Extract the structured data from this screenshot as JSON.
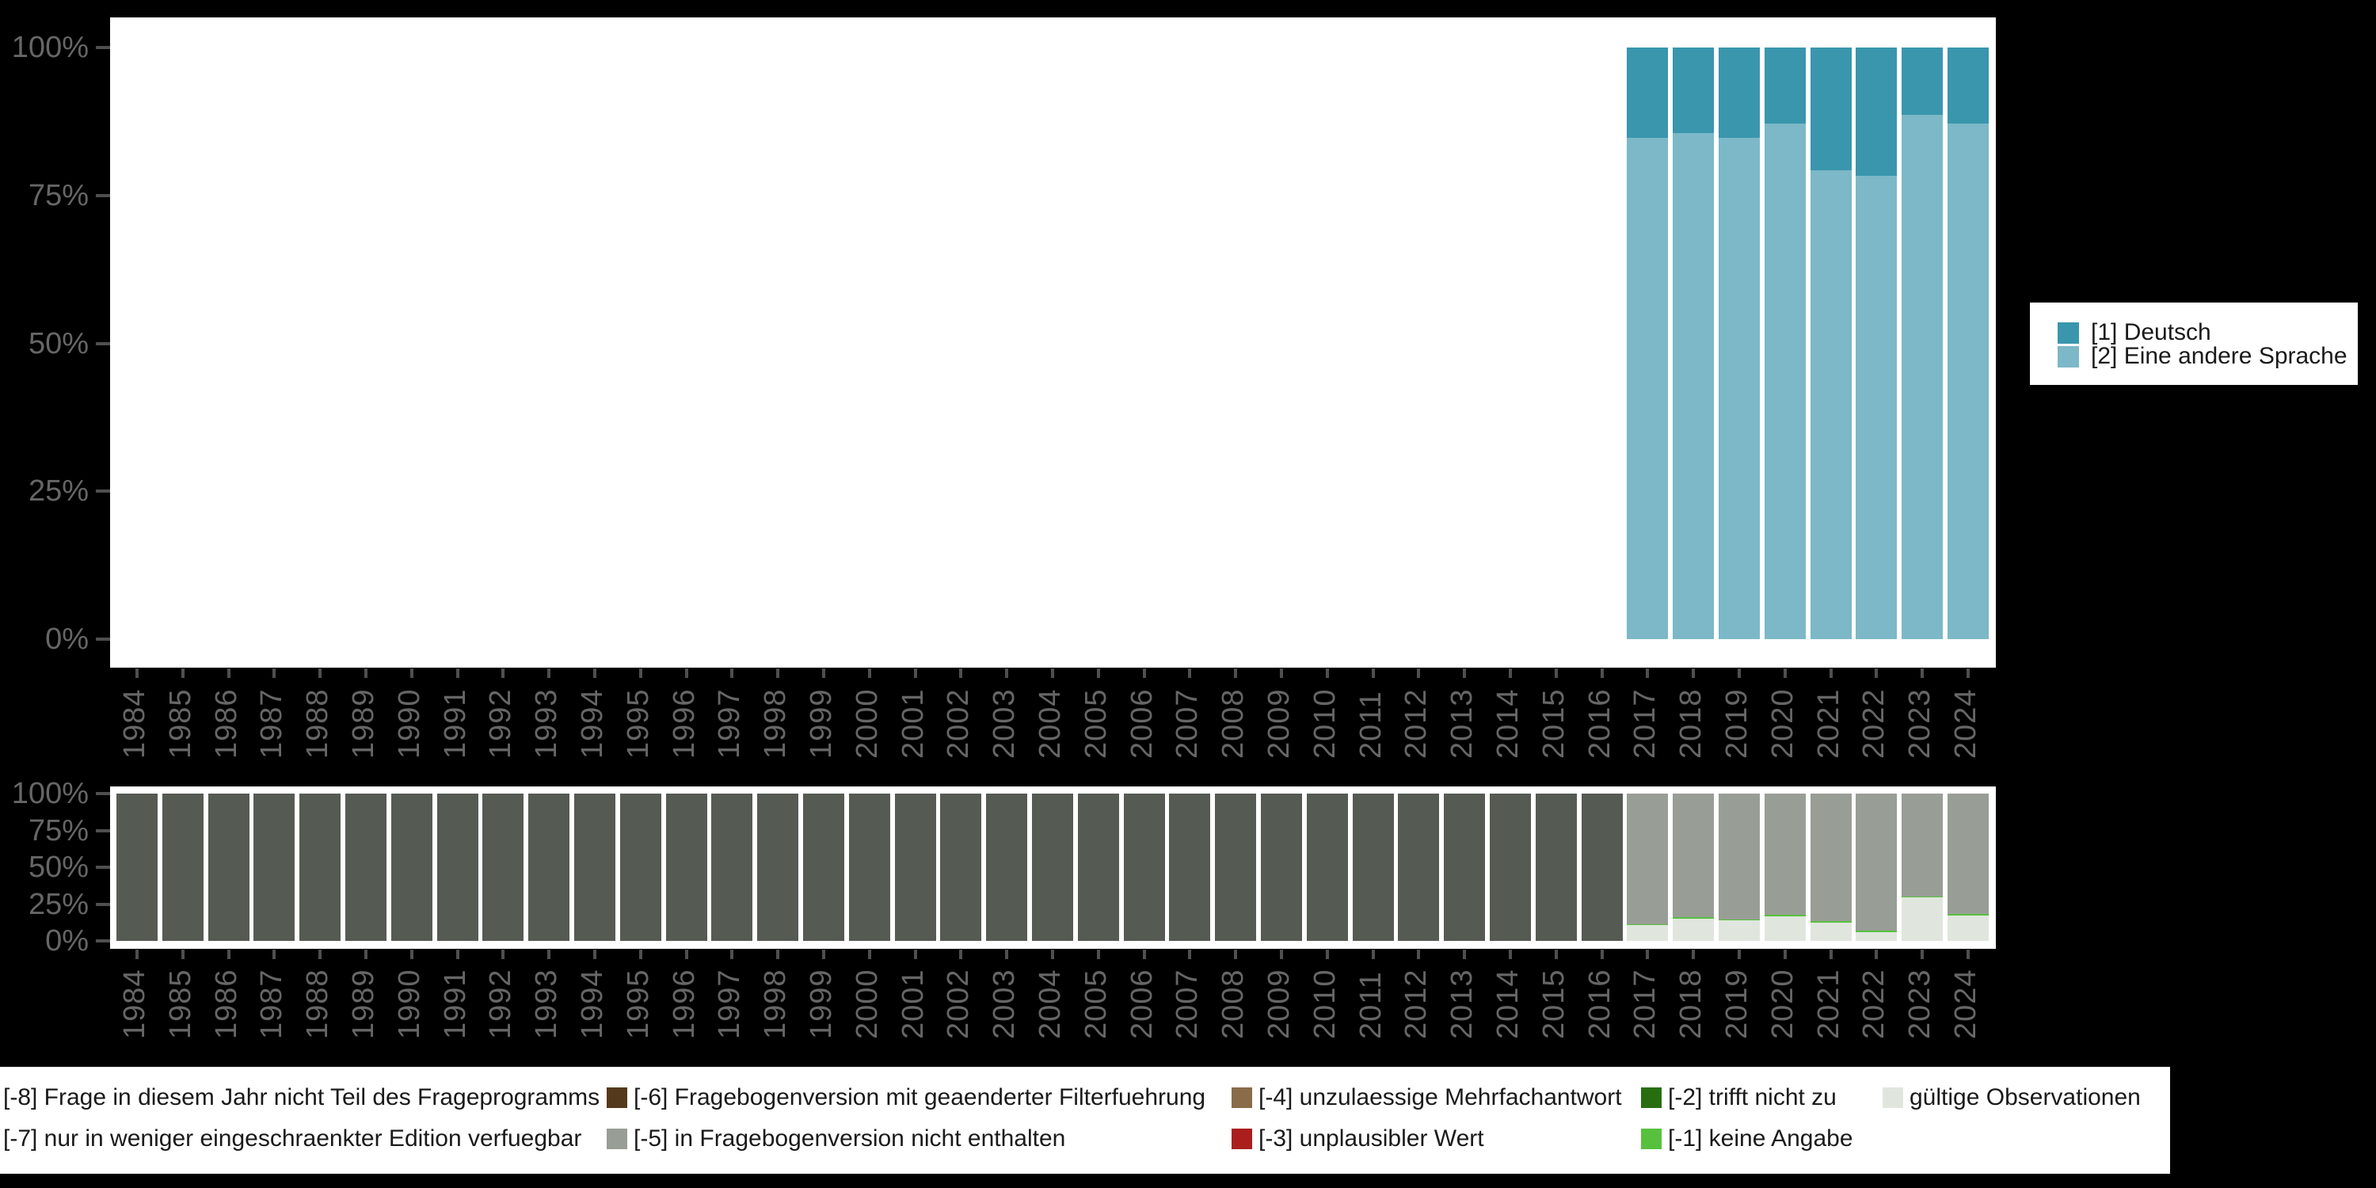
{
  "colors": {
    "background": "#000000",
    "panel": "#ffffff",
    "axis_text": "#666666",
    "axis_tick": "#4f4f4f",
    "legend_text": "#1a1a1a",
    "deutsch": "#3996ad",
    "andere_sprache": "#7cb8c7",
    "code_m8_frageprogramm": "#555b53",
    "code_m7_edition": "#9a9a92",
    "code_m6_filterfuehrung": "#54391d",
    "code_m5_fragebogenversion": "#989e95",
    "code_m4_mehrfachantwort": "#8a6b4a",
    "code_m3_unplausibel": "#ab1e1e",
    "code_m2_trifft_nicht_zu": "#276e11",
    "code_m1_keine_angabe": "#57c13e",
    "valid_observations": "#e0e6de"
  },
  "years": [
    "1984",
    "1985",
    "1986",
    "1987",
    "1988",
    "1989",
    "1990",
    "1991",
    "1992",
    "1993",
    "1994",
    "1995",
    "1996",
    "1997",
    "1998",
    "1999",
    "2000",
    "2001",
    "2002",
    "2003",
    "2004",
    "2005",
    "2006",
    "2007",
    "2008",
    "2009",
    "2010",
    "2011",
    "2012",
    "2013",
    "2014",
    "2015",
    "2016",
    "2017",
    "2018",
    "2019",
    "2020",
    "2021",
    "2022",
    "2023",
    "2024"
  ],
  "y_axis_ticks": [
    "100%",
    "75%",
    "50%",
    "25%",
    "0%"
  ],
  "chart_data": [
    {
      "type": "bar",
      "stacked": true,
      "title": "",
      "xlabel": "",
      "ylabel": "",
      "ylim": [
        0,
        100
      ],
      "grid": false,
      "legend_position": "right",
      "categories": [
        "1984",
        "1985",
        "1986",
        "1987",
        "1988",
        "1989",
        "1990",
        "1991",
        "1992",
        "1993",
        "1994",
        "1995",
        "1996",
        "1997",
        "1998",
        "1999",
        "2000",
        "2001",
        "2002",
        "2003",
        "2004",
        "2005",
        "2006",
        "2007",
        "2008",
        "2009",
        "2010",
        "2011",
        "2012",
        "2013",
        "2014",
        "2015",
        "2016",
        "2017",
        "2018",
        "2019",
        "2020",
        "2021",
        "2022",
        "2023",
        "2024"
      ],
      "yticks": [
        "0%",
        "25%",
        "50%",
        "75%",
        "100%"
      ],
      "series": [
        {
          "name": "[2] Eine andere Sprache",
          "color": "#7cb8c7",
          "values": [
            0,
            0,
            0,
            0,
            0,
            0,
            0,
            0,
            0,
            0,
            0,
            0,
            0,
            0,
            0,
            0,
            0,
            0,
            0,
            0,
            0,
            0,
            0,
            0,
            0,
            0,
            0,
            0,
            0,
            0,
            0,
            0,
            0,
            84.8,
            85.5,
            84.7,
            87.2,
            79.2,
            78.3,
            88.6,
            87.1
          ]
        },
        {
          "name": "[1] Deutsch",
          "color": "#3996ad",
          "values": [
            0,
            0,
            0,
            0,
            0,
            0,
            0,
            0,
            0,
            0,
            0,
            0,
            0,
            0,
            0,
            0,
            0,
            0,
            0,
            0,
            0,
            0,
            0,
            0,
            0,
            0,
            0,
            0,
            0,
            0,
            0,
            0,
            0,
            15.2,
            14.5,
            15.3,
            12.8,
            20.8,
            21.7,
            11.4,
            12.9
          ]
        }
      ]
    },
    {
      "type": "bar",
      "stacked": true,
      "title": "",
      "xlabel": "",
      "ylabel": "",
      "ylim": [
        0,
        100
      ],
      "grid": false,
      "legend_position": "bottom",
      "categories": [
        "1984",
        "1985",
        "1986",
        "1987",
        "1988",
        "1989",
        "1990",
        "1991",
        "1992",
        "1993",
        "1994",
        "1995",
        "1996",
        "1997",
        "1998",
        "1999",
        "2000",
        "2001",
        "2002",
        "2003",
        "2004",
        "2005",
        "2006",
        "2007",
        "2008",
        "2009",
        "2010",
        "2011",
        "2012",
        "2013",
        "2014",
        "2015",
        "2016",
        "2017",
        "2018",
        "2019",
        "2020",
        "2021",
        "2022",
        "2023",
        "2024"
      ],
      "yticks": [
        "0%",
        "25%",
        "50%",
        "75%",
        "100%"
      ],
      "series": [
        {
          "name": "gültige Observationen",
          "color": "#e0e6de",
          "values": [
            0,
            0,
            0,
            0,
            0,
            0,
            0,
            0,
            0,
            0,
            0,
            0,
            0,
            0,
            0,
            0,
            0,
            0,
            0,
            0,
            0,
            0,
            0,
            0,
            0,
            0,
            0,
            0,
            0,
            0,
            0,
            0,
            0,
            10.6,
            15.2,
            13.8,
            16.8,
            12.4,
            5.9,
            29.4,
            17.2
          ]
        },
        {
          "name": "[-1] keine Angabe",
          "color": "#57c13e",
          "values": [
            0,
            0,
            0,
            0,
            0,
            0,
            0,
            0,
            0,
            0,
            0,
            0,
            0,
            0,
            0,
            0,
            0,
            0,
            0,
            0,
            0,
            0,
            0,
            0,
            0,
            0,
            0,
            0,
            0,
            0,
            0,
            0,
            0,
            0.9,
            1.1,
            0.9,
            0.9,
            0.9,
            0.9,
            0.7,
            0.9
          ]
        },
        {
          "name": "[-5] in Fragebogenversion nicht enthalten",
          "color": "#989e95",
          "values": [
            0,
            0,
            0,
            0,
            0,
            0,
            0,
            0,
            0,
            0,
            0,
            0,
            0,
            0,
            0,
            0,
            0,
            0,
            0,
            0,
            0,
            0,
            0,
            0,
            0,
            0,
            0,
            0,
            0,
            0,
            0,
            0,
            0,
            88.5,
            83.7,
            85.3,
            82.3,
            86.7,
            93.2,
            69.9,
            81.9
          ]
        },
        {
          "name": "[-8] Frage in diesem Jahr nicht Teil des Frageprogramms",
          "color": "#555b53",
          "values": [
            100,
            100,
            100,
            100,
            100,
            100,
            100,
            100,
            100,
            100,
            100,
            100,
            100,
            100,
            100,
            100,
            100,
            100,
            100,
            100,
            100,
            100,
            100,
            100,
            100,
            100,
            100,
            100,
            100,
            100,
            100,
            100,
            100,
            0,
            0,
            0,
            0,
            0,
            0,
            0,
            0
          ]
        }
      ]
    }
  ],
  "legend_right": {
    "entries": [
      {
        "label": "[1] Deutsch",
        "color": "#3996ad"
      },
      {
        "label": "[2] Eine andere Sprache",
        "color": "#7cb8c7"
      }
    ]
  },
  "legend_bottom": {
    "rows": [
      [
        {
          "label": "[-8] Frage in diesem Jahr nicht Teil des Frageprogramms",
          "color": "#555b53",
          "swatch_visible": false
        },
        {
          "label": "[-6] Fragebogenversion mit geaenderter Filterfuehrung",
          "color": "#54391d",
          "swatch_visible": true
        },
        {
          "label": "[-4] unzulaessige Mehrfachantwort",
          "color": "#8a6b4a",
          "swatch_visible": true
        },
        {
          "label": "[-2] trifft nicht zu",
          "color": "#276e11",
          "swatch_visible": true
        },
        {
          "label": "gültige Observationen",
          "color": "#e0e6de",
          "swatch_visible": true
        }
      ],
      [
        {
          "label": "[-7] nur in weniger eingeschraenkter Edition verfuegbar",
          "color": "#9a9a92",
          "swatch_visible": false
        },
        {
          "label": "[-5] in Fragebogenversion nicht enthalten",
          "color": "#989e95",
          "swatch_visible": true
        },
        {
          "label": "[-3] unplausibler Wert",
          "color": "#ab1e1e",
          "swatch_visible": true
        },
        {
          "label": "[-1] keine Angabe",
          "color": "#57c13e",
          "swatch_visible": true
        }
      ]
    ]
  }
}
